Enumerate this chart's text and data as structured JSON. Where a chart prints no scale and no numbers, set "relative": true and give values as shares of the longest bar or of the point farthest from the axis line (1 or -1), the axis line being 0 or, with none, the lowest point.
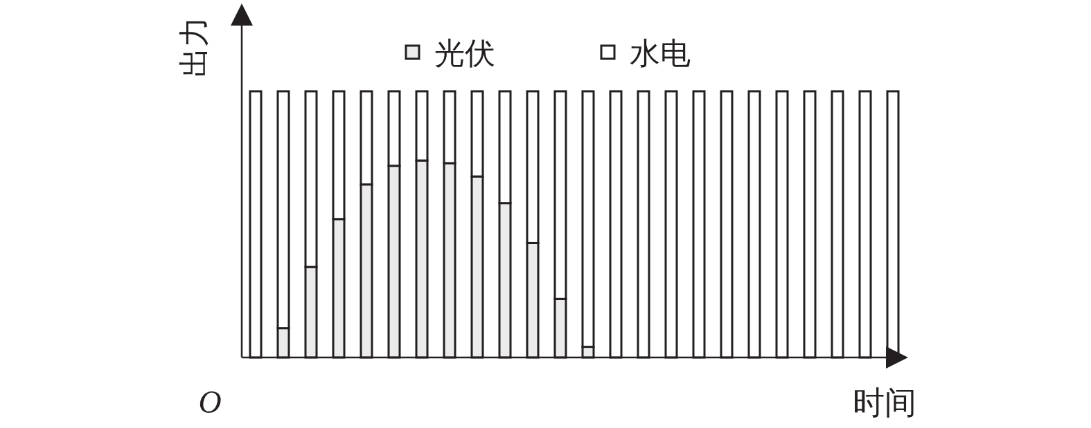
{
  "chart_data": {
    "type": "bar",
    "stacked": true,
    "relative": true,
    "xlabel": "时间",
    "ylabel": "出力",
    "annotations": [
      "O"
    ],
    "legend": "top",
    "categories": [
      null,
      null,
      null,
      null,
      null,
      null,
      null,
      null,
      null,
      null,
      null,
      null,
      null,
      null,
      null,
      null,
      null,
      null,
      null,
      null,
      null,
      null,
      null,
      null
    ],
    "series": [
      {
        "name": "光伏",
        "color": "#ebebeb",
        "values": [
          0,
          0.11,
          0.34,
          0.52,
          0.65,
          0.72,
          0.74,
          0.73,
          0.68,
          0.58,
          0.43,
          0.22,
          0.04,
          0,
          0,
          0,
          0,
          0,
          0,
          0,
          0,
          0,
          0,
          0
        ]
      },
      {
        "name": "水电",
        "color": "#ffffff",
        "values": [
          1,
          0.89,
          0.66,
          0.48,
          0.35,
          0.28,
          0.26,
          0.27,
          0.32,
          0.42,
          0.57,
          0.78,
          0.96,
          1,
          1,
          1,
          1,
          1,
          1,
          1,
          1,
          1,
          1,
          1
        ]
      }
    ]
  }
}
